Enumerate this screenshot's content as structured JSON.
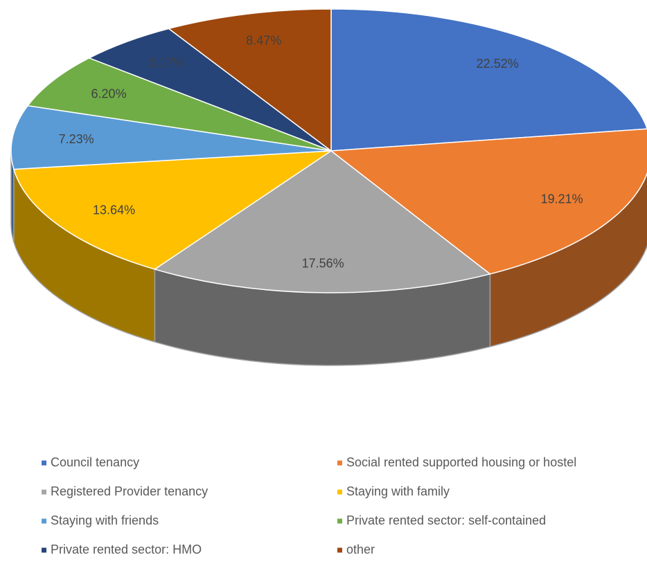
{
  "chart_data": {
    "type": "pie",
    "categories": [
      "Council tenancy",
      "Social rented supported housing or hostel",
      "Registered Provider tenancy",
      "Staying with family",
      "Staying with friends",
      "Private rented sector: self-contained",
      "Private rented sector: HMO",
      "other"
    ],
    "values": [
      22.52,
      19.21,
      17.56,
      13.64,
      7.23,
      6.2,
      5.17,
      8.47
    ],
    "value_labels": [
      "22.52%",
      "19.21%",
      "17.56%",
      "13.64%",
      "7.23%",
      "6.20%",
      "5.17%",
      "8.47%"
    ],
    "colors": [
      "#4472c4",
      "#ed7d31",
      "#a5a5a5",
      "#ffc000",
      "#5b9bd5",
      "#70ad47",
      "#264478",
      "#9e480e"
    ],
    "legend": "bottom"
  }
}
